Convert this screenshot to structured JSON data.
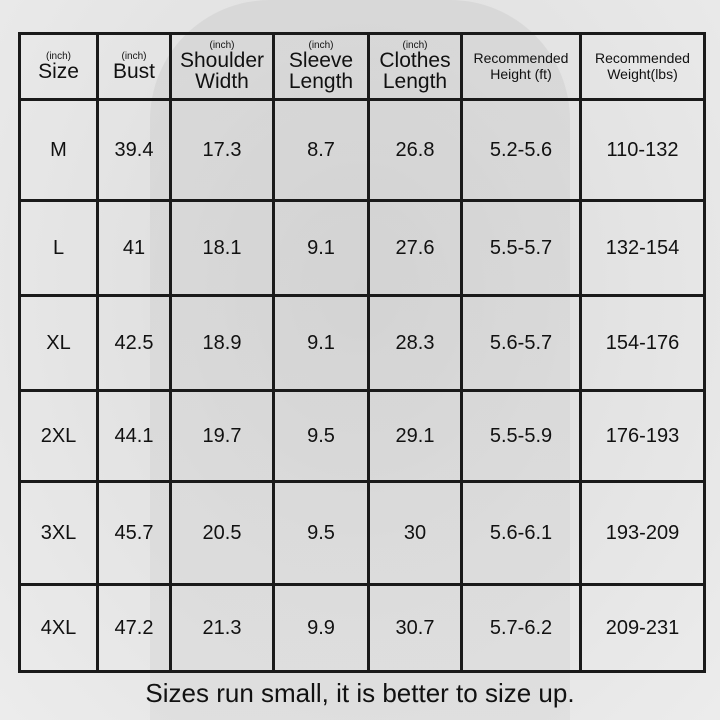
{
  "headers": [
    {
      "unit": "(inch)",
      "label": "Size"
    },
    {
      "unit": "(inch)",
      "label": "Bust"
    },
    {
      "unit": "(inch)",
      "label": "Shoulder Width"
    },
    {
      "unit": "(inch)",
      "label": "Sleeve Length"
    },
    {
      "unit": "(inch)",
      "label": "Clothes Length"
    },
    {
      "unit": "",
      "label": "Recommended Height (ft)"
    },
    {
      "unit": "",
      "label": "Recommended Weight(lbs)"
    }
  ],
  "rows": [
    [
      "M",
      "39.4",
      "17.3",
      "8.7",
      "26.8",
      "5.2-5.6",
      "110-132"
    ],
    [
      "L",
      "41",
      "18.1",
      "9.1",
      "27.6",
      "5.5-5.7",
      "132-154"
    ],
    [
      "XL",
      "42.5",
      "18.9",
      "9.1",
      "28.3",
      "5.6-5.7",
      "154-176"
    ],
    [
      "2XL",
      "44.1",
      "19.7",
      "9.5",
      "29.1",
      "5.5-5.9",
      "176-193"
    ],
    [
      "3XL",
      "45.7",
      "20.5",
      "9.5",
      "30",
      "5.6-6.1",
      "193-209"
    ],
    [
      "4XL",
      "47.2",
      "21.3",
      "9.9",
      "30.7",
      "5.7-6.2",
      "209-231"
    ]
  ],
  "note": "Sizes run small, it is better to size up."
}
